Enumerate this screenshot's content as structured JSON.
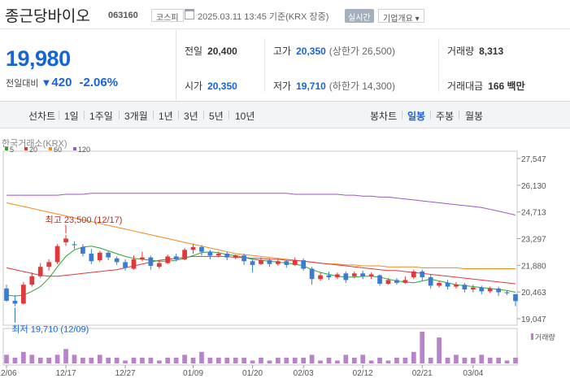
{
  "header": {
    "name": "종근당바이오",
    "code": "063160",
    "market": "코스피",
    "datetime": "2025.03.11 13:45 기준(KRX 장중)",
    "realtime": "실시간",
    "company_info": "기업개요 ▾"
  },
  "quote": {
    "price": "19,980",
    "change_label": "전일대비",
    "change_arrow": "▼",
    "change_value": "420",
    "change_pct": "-2.06%"
  },
  "stats": {
    "prev_label": "전일",
    "prev_value": "20,400",
    "high_label": "고가",
    "high_value": "20,350",
    "upper_limit": "(상한가 26,500)",
    "volume_label": "거래량",
    "volume_value": "8,313",
    "open_label": "시가",
    "open_value": "20,350",
    "low_label": "저가",
    "low_value": "19,710",
    "lower_limit": "(하한가 14,300)",
    "amount_label": "거래대금",
    "amount_value": "166 백만"
  },
  "tabs": {
    "line_chart": "선차트",
    "periods": [
      "1일",
      "1주일",
      "3개월",
      "1년",
      "3년",
      "5년",
      "10년"
    ],
    "candle_chart": "봉차트",
    "candles": [
      "일봉",
      "주봉",
      "월봉"
    ],
    "active_candle": "일봉"
  },
  "chart_data": {
    "type": "candlestick",
    "source": "한국거래소(KRX)",
    "ma_legend": [
      {
        "name": "5",
        "color": "#2fa52f"
      },
      {
        "name": "20",
        "color": "#e0383b"
      },
      {
        "name": "60",
        "color": "#f08a1c"
      },
      {
        "name": "120",
        "color": "#9b59c7"
      }
    ],
    "y_ticks": [
      "27,547",
      "26,130",
      "24,713",
      "23,297",
      "21,880",
      "20,463",
      "19,047"
    ],
    "y_range": [
      19047,
      27547
    ],
    "x_labels": [
      "12/06",
      "12/17",
      "12/27",
      "01/09",
      "01/20",
      "02/03",
      "02/12",
      "02/21",
      "03/04"
    ],
    "annotations": {
      "high": "최고 23,500 (12/17)",
      "low": "최저 19,710 (12/09)"
    },
    "volume_legend": "거래량",
    "candles": [
      {
        "date": "12/06",
        "o": 20650,
        "h": 20850,
        "c": 20000,
        "l": 19950
      },
      {
        "date": "12/09",
        "o": 20000,
        "h": 20300,
        "c": 19850,
        "l": 19710
      },
      {
        "date": "12/10",
        "o": 19850,
        "h": 21000,
        "c": 20850,
        "l": 19800
      },
      {
        "date": "12/11",
        "o": 20850,
        "h": 21500,
        "c": 21300,
        "l": 20750
      },
      {
        "date": "12/12",
        "o": 21300,
        "h": 22000,
        "c": 21800,
        "l": 21200
      },
      {
        "date": "12/13",
        "o": 21800,
        "h": 22200,
        "c": 22050,
        "l": 21600
      },
      {
        "date": "12/16",
        "o": 22050,
        "h": 23000,
        "c": 22900,
        "l": 21950
      },
      {
        "date": "12/17",
        "o": 23100,
        "h": 23500,
        "c": 23300,
        "l": 22900
      },
      {
        "date": "12/18",
        "o": 23000,
        "h": 23150,
        "c": 22950,
        "l": 22750
      },
      {
        "date": "12/19",
        "o": 22850,
        "h": 23000,
        "c": 22500,
        "l": 22350
      },
      {
        "date": "12/20",
        "o": 22500,
        "h": 22750,
        "c": 22100,
        "l": 21950
      },
      {
        "date": "12/23",
        "o": 22150,
        "h": 22650,
        "c": 22550,
        "l": 22050
      },
      {
        "date": "12/24",
        "o": 22550,
        "h": 22650,
        "c": 22300,
        "l": 22150
      },
      {
        "date": "12/26",
        "o": 22250,
        "h": 22350,
        "c": 22050,
        "l": 21900
      },
      {
        "date": "12/27",
        "o": 22050,
        "h": 22200,
        "c": 21750,
        "l": 21600
      },
      {
        "date": "12/30",
        "o": 21700,
        "h": 22400,
        "c": 22200,
        "l": 21650
      },
      {
        "date": "12/31",
        "o": 22200,
        "h": 22600,
        "c": 22300,
        "l": 22100
      },
      {
        "date": "01/02",
        "o": 22300,
        "h": 22400,
        "c": 21850,
        "l": 21650
      },
      {
        "date": "01/03",
        "o": 21800,
        "h": 22150,
        "c": 22000,
        "l": 21700
      },
      {
        "date": "01/06",
        "o": 22000,
        "h": 22450,
        "c": 22350,
        "l": 21950
      },
      {
        "date": "01/07",
        "o": 22350,
        "h": 22500,
        "c": 22200,
        "l": 22100
      },
      {
        "date": "01/08",
        "o": 22200,
        "h": 22800,
        "c": 22700,
        "l": 22150
      },
      {
        "date": "01/09",
        "o": 22700,
        "h": 23000,
        "c": 22850,
        "l": 22500
      },
      {
        "date": "01/10",
        "o": 22850,
        "h": 22950,
        "c": 22600,
        "l": 22400
      },
      {
        "date": "01/13",
        "o": 22600,
        "h": 22700,
        "c": 22400,
        "l": 22200
      },
      {
        "date": "01/14",
        "o": 22400,
        "h": 22600,
        "c": 22500,
        "l": 22300
      },
      {
        "date": "01/15",
        "o": 22500,
        "h": 22600,
        "c": 22300,
        "l": 22150
      },
      {
        "date": "01/16",
        "o": 22300,
        "h": 22450,
        "c": 22400,
        "l": 22200
      },
      {
        "date": "01/17",
        "o": 22400,
        "h": 22500,
        "c": 22100,
        "l": 21900
      },
      {
        "date": "01/20",
        "o": 22100,
        "h": 22200,
        "c": 21900,
        "l": 21500
      },
      {
        "date": "01/21",
        "o": 21950,
        "h": 22300,
        "c": 22150,
        "l": 21900
      },
      {
        "date": "01/22",
        "o": 22150,
        "h": 22250,
        "c": 21950,
        "l": 21800
      },
      {
        "date": "01/23",
        "o": 21950,
        "h": 22200,
        "c": 22100,
        "l": 21850
      },
      {
        "date": "01/24",
        "o": 22100,
        "h": 22150,
        "c": 21900,
        "l": 21750
      },
      {
        "date": "01/31",
        "o": 21900,
        "h": 22300,
        "c": 22150,
        "l": 21850
      },
      {
        "date": "02/03",
        "o": 22150,
        "h": 22250,
        "c": 21700,
        "l": 21600
      },
      {
        "date": "02/04",
        "o": 21700,
        "h": 21800,
        "c": 21150,
        "l": 20850
      },
      {
        "date": "02/05",
        "o": 21150,
        "h": 21500,
        "c": 21350,
        "l": 21050
      },
      {
        "date": "02/06",
        "o": 21350,
        "h": 21550,
        "c": 21250,
        "l": 21100
      },
      {
        "date": "02/07",
        "o": 21250,
        "h": 21500,
        "c": 21400,
        "l": 21150
      },
      {
        "date": "02/10",
        "o": 21450,
        "h": 21550,
        "c": 21100,
        "l": 20950
      },
      {
        "date": "02/11",
        "o": 21300,
        "h": 21550,
        "c": 21450,
        "l": 21200
      },
      {
        "date": "02/12",
        "o": 21450,
        "h": 21600,
        "c": 21300,
        "l": 21150
      },
      {
        "date": "02/13",
        "o": 21300,
        "h": 21500,
        "c": 21400,
        "l": 21150
      },
      {
        "date": "02/14",
        "o": 21350,
        "h": 21400,
        "c": 20900,
        "l": 20800
      },
      {
        "date": "02/17",
        "o": 20900,
        "h": 21200,
        "c": 21100,
        "l": 20850
      },
      {
        "date": "02/18",
        "o": 21100,
        "h": 21200,
        "c": 20950,
        "l": 20850
      },
      {
        "date": "02/19",
        "o": 20950,
        "h": 21300,
        "c": 21100,
        "l": 20900
      },
      {
        "date": "02/20",
        "o": 21250,
        "h": 21650,
        "c": 21550,
        "l": 21150
      },
      {
        "date": "02/21",
        "o": 21550,
        "h": 21650,
        "c": 21250,
        "l": 21050
      },
      {
        "date": "02/24",
        "o": 21250,
        "h": 21400,
        "c": 20800,
        "l": 20650
      },
      {
        "date": "02/25",
        "o": 20800,
        "h": 21050,
        "c": 20950,
        "l": 20700
      },
      {
        "date": "02/26",
        "o": 20950,
        "h": 21100,
        "c": 20750,
        "l": 20600
      },
      {
        "date": "02/27",
        "o": 20750,
        "h": 21000,
        "c": 20850,
        "l": 20650
      },
      {
        "date": "02/28",
        "o": 20850,
        "h": 20950,
        "c": 20600,
        "l": 20450
      },
      {
        "date": "03/04",
        "o": 20600,
        "h": 20850,
        "c": 20700,
        "l": 20450
      },
      {
        "date": "03/05",
        "o": 20700,
        "h": 20800,
        "c": 20500,
        "l": 20350
      },
      {
        "date": "03/06",
        "o": 20500,
        "h": 20750,
        "c": 20650,
        "l": 20400
      },
      {
        "date": "03/07",
        "o": 20650,
        "h": 20750,
        "c": 20450,
        "l": 20250
      },
      {
        "date": "03/10",
        "o": 20450,
        "h": 20550,
        "c": 20400,
        "l": 20300
      },
      {
        "date": "03/11",
        "o": 20350,
        "h": 20350,
        "c": 19980,
        "l": 19710
      }
    ],
    "ma5": [
      20300,
      20250,
      20300,
      20500,
      20750,
      21200,
      21800,
      22350,
      22700,
      22850,
      22900,
      22800,
      22650,
      22500,
      22350,
      22250,
      22200,
      22150,
      22100,
      22100,
      22150,
      22250,
      22400,
      22550,
      22600,
      22550,
      22450,
      22400,
      22300,
      22200,
      22150,
      22100,
      22050,
      22000,
      21950,
      21850,
      21650,
      21500,
      21400,
      21300,
      21250,
      21250,
      21300,
      21300,
      21250,
      21150,
      21050,
      21000,
      20950,
      21050,
      21150,
      21050,
      20950,
      20850,
      20800,
      20750,
      20700,
      20650,
      20600,
      20550,
      20450
    ],
    "ma20": [
      21750,
      21650,
      21550,
      21450,
      21350,
      21300,
      21300,
      21350,
      21400,
      21450,
      21500,
      21550,
      21600,
      21650,
      21750,
      21850,
      21950,
      22050,
      22150,
      22200,
      22250,
      22300,
      22350,
      22350,
      22350,
      22350,
      22350,
      22300,
      22300,
      22250,
      22250,
      22200,
      22200,
      22150,
      22150,
      22100,
      22050,
      22000,
      21950,
      21900,
      21850,
      21800,
      21750,
      21700,
      21650,
      21600,
      21600,
      21550,
      21500,
      21450,
      21400,
      21350,
      21300,
      21250,
      21200,
      21150,
      21100,
      21050,
      21000,
      20950,
      20900
    ],
    "ma60": [
      25200,
      25100,
      25000,
      24900,
      24800,
      24700,
      24600,
      24500,
      24400,
      24300,
      24200,
      24100,
      24000,
      23900,
      23800,
      23700,
      23600,
      23500,
      23400,
      23300,
      23200,
      23100,
      23000,
      22900,
      22800,
      22700,
      22600,
      22500,
      22450,
      22400,
      22350,
      22300,
      22250,
      22200,
      22150,
      22100,
      22050,
      22000,
      21950,
      21950,
      21900,
      21900,
      21850,
      21850,
      21850,
      21800,
      21800,
      21800,
      21800,
      21750,
      21750,
      21750,
      21750,
      21750,
      21700,
      21700,
      21700,
      21700,
      21700,
      21700,
      21700
    ],
    "ma120": [
      25600,
      25600,
      25600,
      25600,
      25600,
      25600,
      25600,
      25650,
      25650,
      25650,
      25700,
      25700,
      25700,
      25700,
      25700,
      25700,
      25700,
      25700,
      25700,
      25700,
      25700,
      25700,
      25700,
      25700,
      25700,
      25700,
      25700,
      25700,
      25700,
      25700,
      25700,
      25700,
      25700,
      25700,
      25650,
      25650,
      25650,
      25650,
      25650,
      25650,
      25600,
      25600,
      25550,
      25550,
      25500,
      25500,
      25450,
      25400,
      25350,
      25300,
      25250,
      25200,
      25150,
      25100,
      25050,
      25000,
      24950,
      24850,
      24750,
      24650,
      24550
    ],
    "volume": [
      3,
      2,
      4,
      3,
      2,
      2,
      3,
      5,
      3,
      2,
      2,
      3,
      2,
      2,
      1,
      2,
      2,
      2,
      1,
      2,
      2,
      3,
      2,
      4,
      2,
      2,
      2,
      2,
      2,
      1,
      2,
      1,
      2,
      2,
      2,
      2,
      3,
      1,
      2,
      1,
      3,
      2,
      3,
      1,
      2,
      1,
      2,
      2,
      4,
      11,
      2,
      9,
      2,
      3,
      2,
      2,
      3,
      2,
      2,
      1,
      2
    ]
  }
}
